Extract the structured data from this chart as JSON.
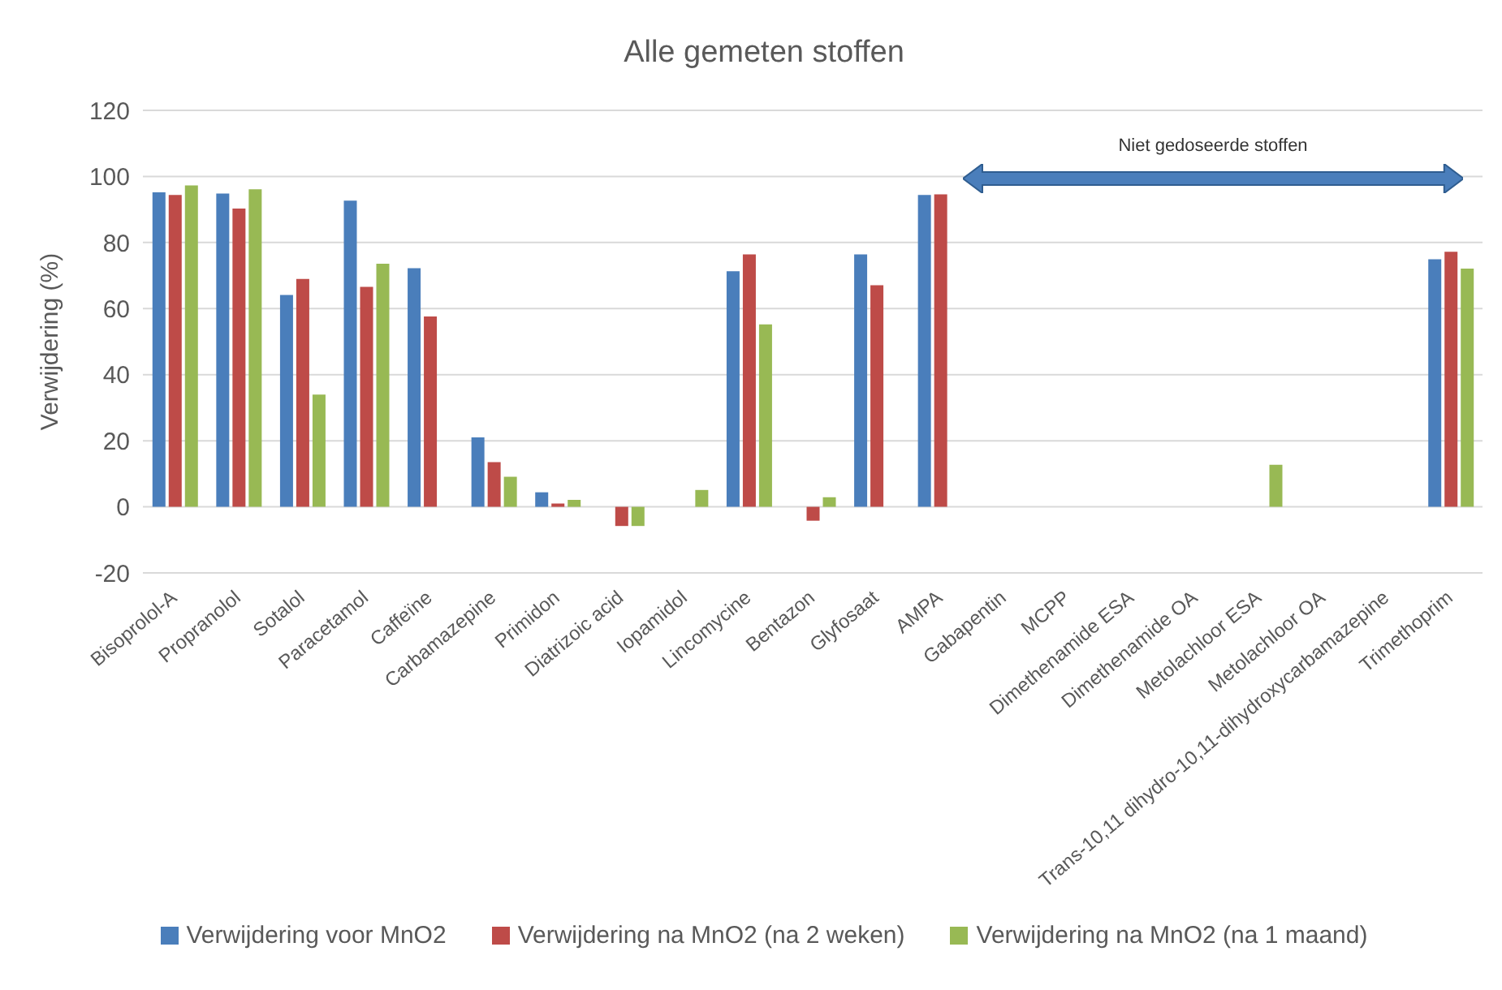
{
  "chart_data": {
    "type": "bar",
    "title": "Alle gemeten stoffen",
    "ylabel": "Verwijdering (%)",
    "categories": [
      "Bisoprolol-A",
      "Propranolol",
      "Sotalol",
      "Paracetamol",
      "Caffeïne",
      "Carbamazepine",
      "Primidon",
      "Diatrizoic acid",
      "Iopamidol",
      "Lincomycine",
      "Bentazon",
      "Glyfosaat",
      "AMPA",
      "Gabapentin",
      "MCPP",
      "Dimethenamide ESA",
      "Dimethenamide OA",
      "Metolachloor ESA",
      "Metolachloor OA",
      "Trans-10,11 dihydro-10,11-dihydroxycarbamazepine",
      "Trimethoprim"
    ],
    "series": [
      {
        "name": "Verwijdering voor MnO2",
        "color": "#4a7ebb",
        "values": [
          95.2,
          94.8,
          64.1,
          92.7,
          72.2,
          21.0,
          4.4,
          null,
          null,
          71.3,
          null,
          76.4,
          94.4,
          null,
          null,
          null,
          null,
          null,
          null,
          null,
          74.9
        ]
      },
      {
        "name": "Verwijdering na MnO2 (na 2 weken)",
        "color": "#be4b48",
        "values": [
          94.4,
          90.3,
          69.0,
          66.6,
          57.6,
          13.5,
          1.0,
          -5.8,
          null,
          76.4,
          -4.2,
          67.1,
          94.6,
          null,
          null,
          null,
          null,
          null,
          null,
          null,
          77.2
        ]
      },
      {
        "name": "Verwijdering na MnO2 (na 1 maand)",
        "color": "#98b954",
        "values": [
          97.3,
          96.1,
          34.0,
          73.6,
          null,
          9.1,
          2.1,
          -5.8,
          5.1,
          55.2,
          2.9,
          null,
          null,
          null,
          null,
          null,
          null,
          12.7,
          null,
          null,
          72.1
        ]
      }
    ],
    "ylim": [
      -20,
      120
    ],
    "yticks": [
      -20,
      0,
      20,
      40,
      60,
      80,
      100,
      120
    ],
    "grid": "y",
    "legend": "bottom",
    "annotations": [
      "Niet gedoseerde stoffen"
    ]
  }
}
